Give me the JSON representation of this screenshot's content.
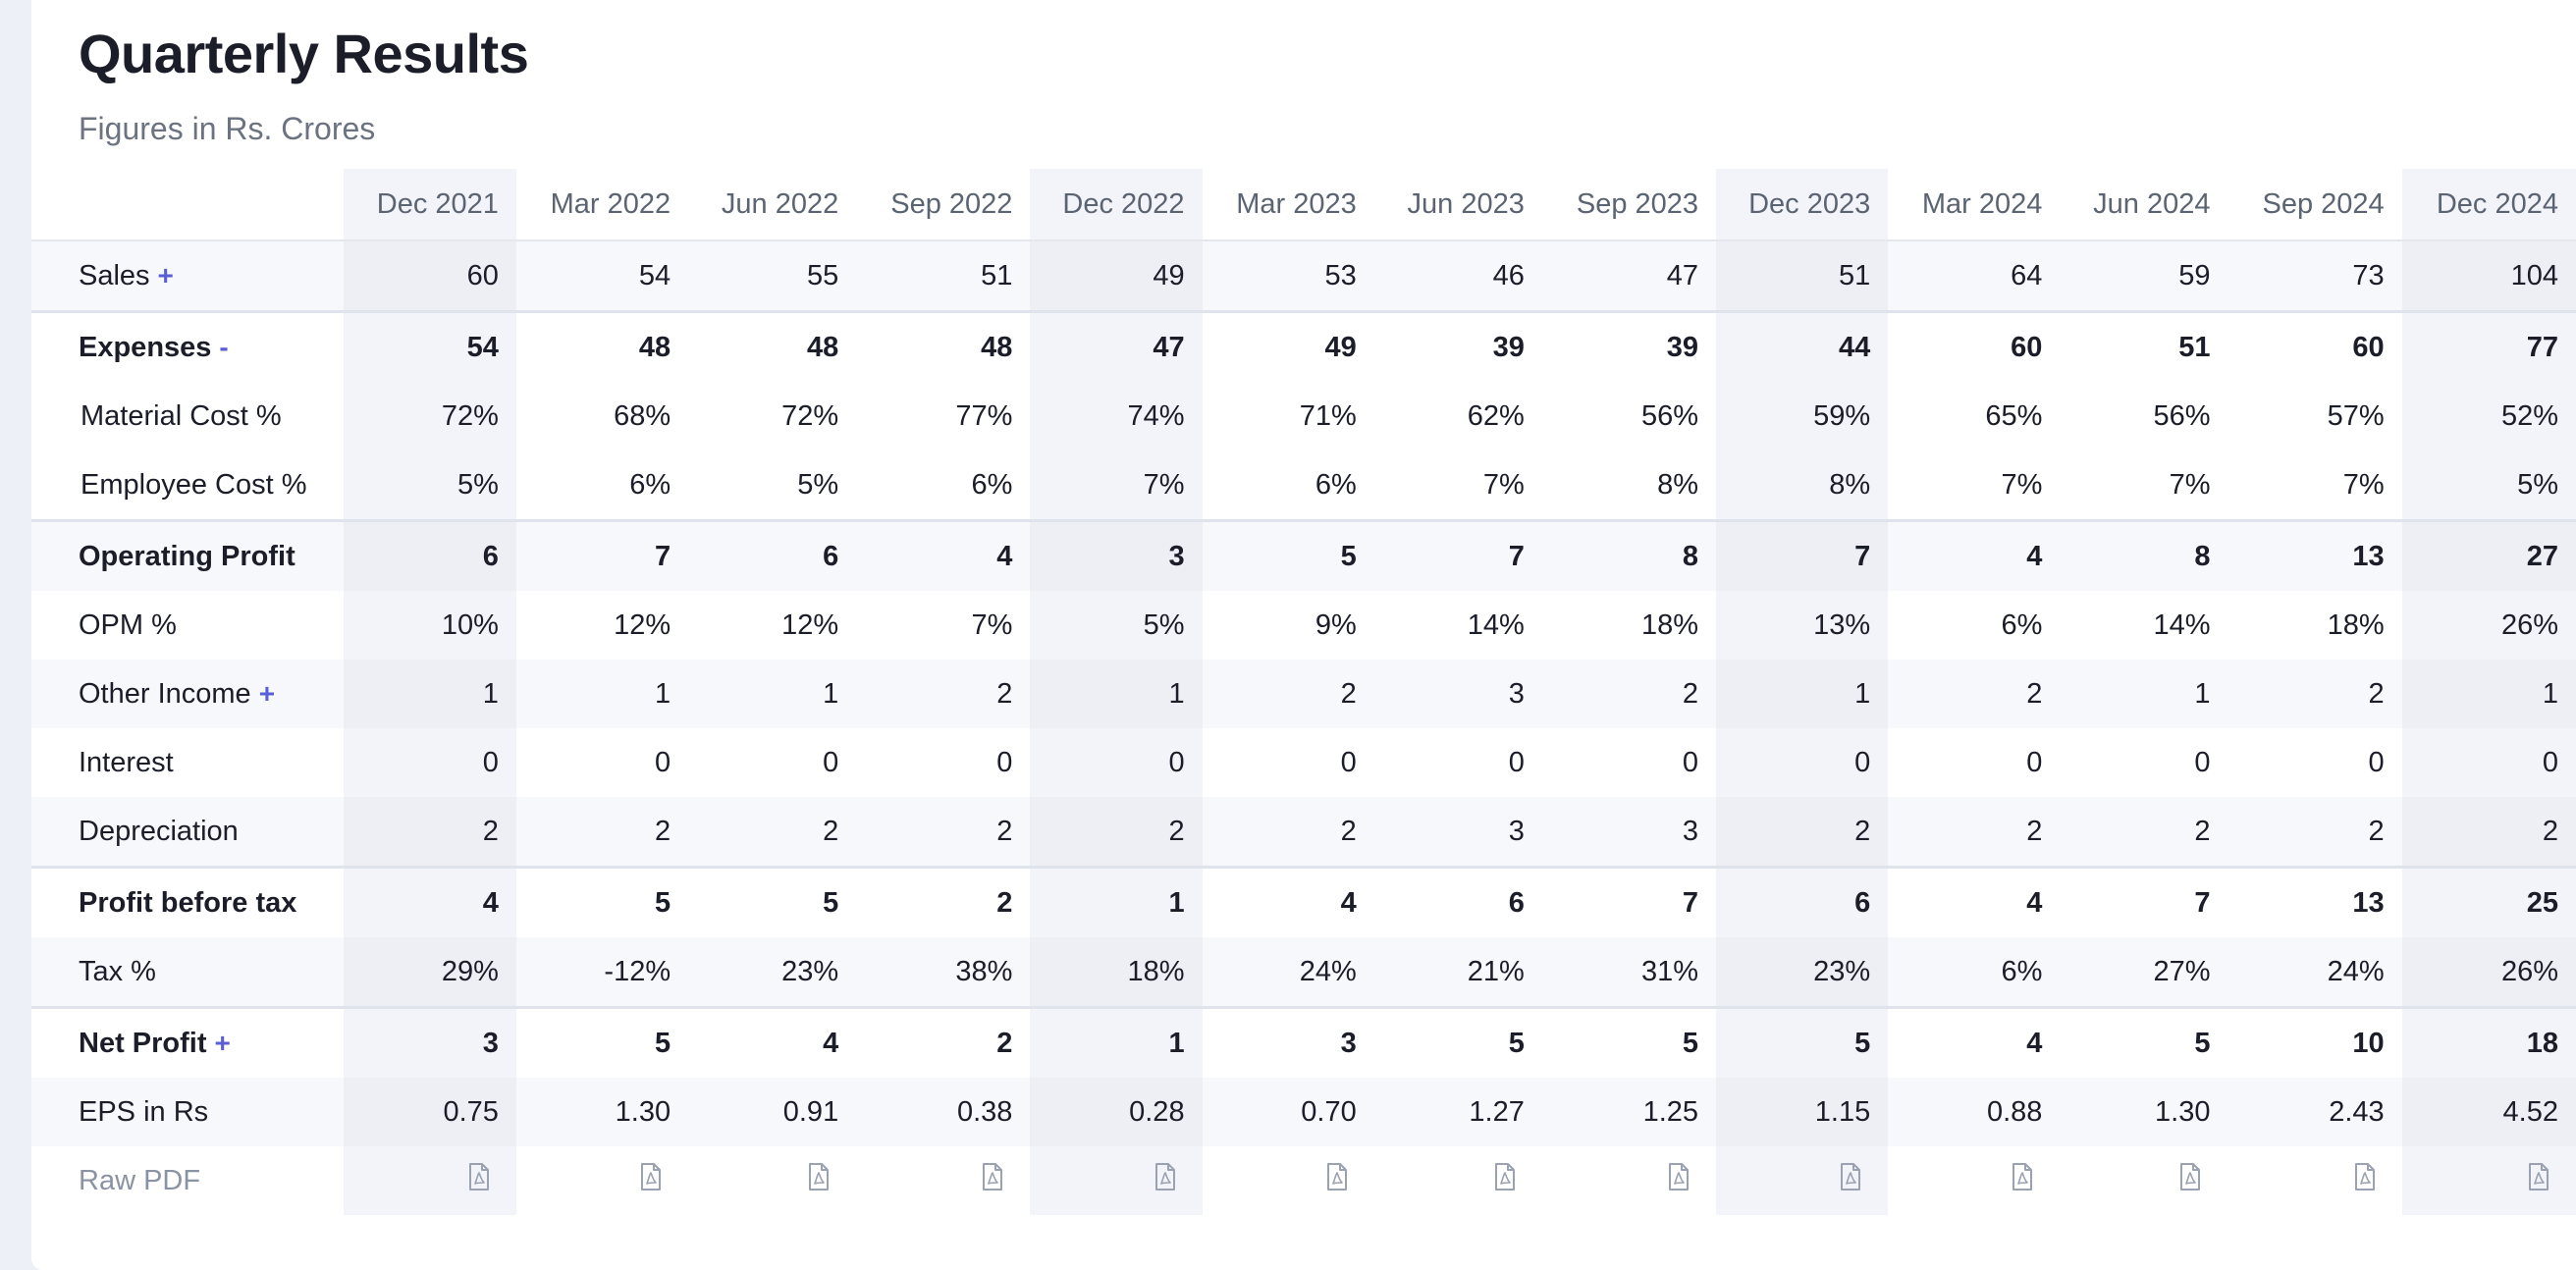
{
  "title": "Quarterly Results",
  "subtitle": "Figures in Rs. Crores",
  "accent_color": "#5b5fd6",
  "columns": [
    "Dec 2021",
    "Mar 2022",
    "Jun 2022",
    "Sep 2022",
    "Dec 2022",
    "Mar 2023",
    "Jun 2023",
    "Sep 2023",
    "Dec 2023",
    "Mar 2024",
    "Jun 2024",
    "Sep 2024",
    "Dec 2024"
  ],
  "rows": [
    {
      "label": "Sales",
      "expander": "+",
      "values": [
        "60",
        "54",
        "55",
        "51",
        "49",
        "53",
        "46",
        "47",
        "51",
        "64",
        "59",
        "73",
        "104"
      ]
    },
    {
      "label": "Expenses",
      "expander": "-",
      "values": [
        "54",
        "48",
        "48",
        "48",
        "47",
        "49",
        "39",
        "39",
        "44",
        "60",
        "51",
        "60",
        "77"
      ]
    },
    {
      "label": "Material Cost %",
      "values": [
        "72%",
        "68%",
        "72%",
        "77%",
        "74%",
        "71%",
        "62%",
        "56%",
        "59%",
        "65%",
        "56%",
        "57%",
        "52%"
      ]
    },
    {
      "label": "Employee Cost %",
      "values": [
        "5%",
        "6%",
        "5%",
        "6%",
        "7%",
        "6%",
        "7%",
        "8%",
        "8%",
        "7%",
        "7%",
        "7%",
        "5%"
      ]
    },
    {
      "label": "Operating Profit",
      "values": [
        "6",
        "7",
        "6",
        "4",
        "3",
        "5",
        "7",
        "8",
        "7",
        "4",
        "8",
        "13",
        "27"
      ]
    },
    {
      "label": "OPM %",
      "values": [
        "10%",
        "12%",
        "12%",
        "7%",
        "5%",
        "9%",
        "14%",
        "18%",
        "13%",
        "6%",
        "14%",
        "18%",
        "26%"
      ]
    },
    {
      "label": "Other Income",
      "expander": "+",
      "values": [
        "1",
        "1",
        "1",
        "2",
        "1",
        "2",
        "3",
        "2",
        "1",
        "2",
        "1",
        "2",
        "1"
      ]
    },
    {
      "label": "Interest",
      "values": [
        "0",
        "0",
        "0",
        "0",
        "0",
        "0",
        "0",
        "0",
        "0",
        "0",
        "0",
        "0",
        "0"
      ]
    },
    {
      "label": "Depreciation",
      "values": [
        "2",
        "2",
        "2",
        "2",
        "2",
        "2",
        "3",
        "3",
        "2",
        "2",
        "2",
        "2",
        "2"
      ]
    },
    {
      "label": "Profit before tax",
      "values": [
        "4",
        "5",
        "5",
        "2",
        "1",
        "4",
        "6",
        "7",
        "6",
        "4",
        "7",
        "13",
        "25"
      ]
    },
    {
      "label": "Tax %",
      "values": [
        "29%",
        "-12%",
        "23%",
        "38%",
        "18%",
        "24%",
        "21%",
        "31%",
        "23%",
        "6%",
        "27%",
        "24%",
        "26%"
      ]
    },
    {
      "label": "Net Profit",
      "expander": "+",
      "values": [
        "3",
        "5",
        "4",
        "2",
        "1",
        "3",
        "5",
        "5",
        "5",
        "4",
        "5",
        "10",
        "18"
      ]
    },
    {
      "label": "EPS in Rs",
      "values": [
        "0.75",
        "1.30",
        "0.91",
        "0.38",
        "0.28",
        "0.70",
        "1.27",
        "1.25",
        "1.15",
        "0.88",
        "1.30",
        "2.43",
        "4.52"
      ]
    }
  ],
  "raw_pdf": {
    "label": "Raw PDF",
    "icon": "pdf-file-icon"
  }
}
